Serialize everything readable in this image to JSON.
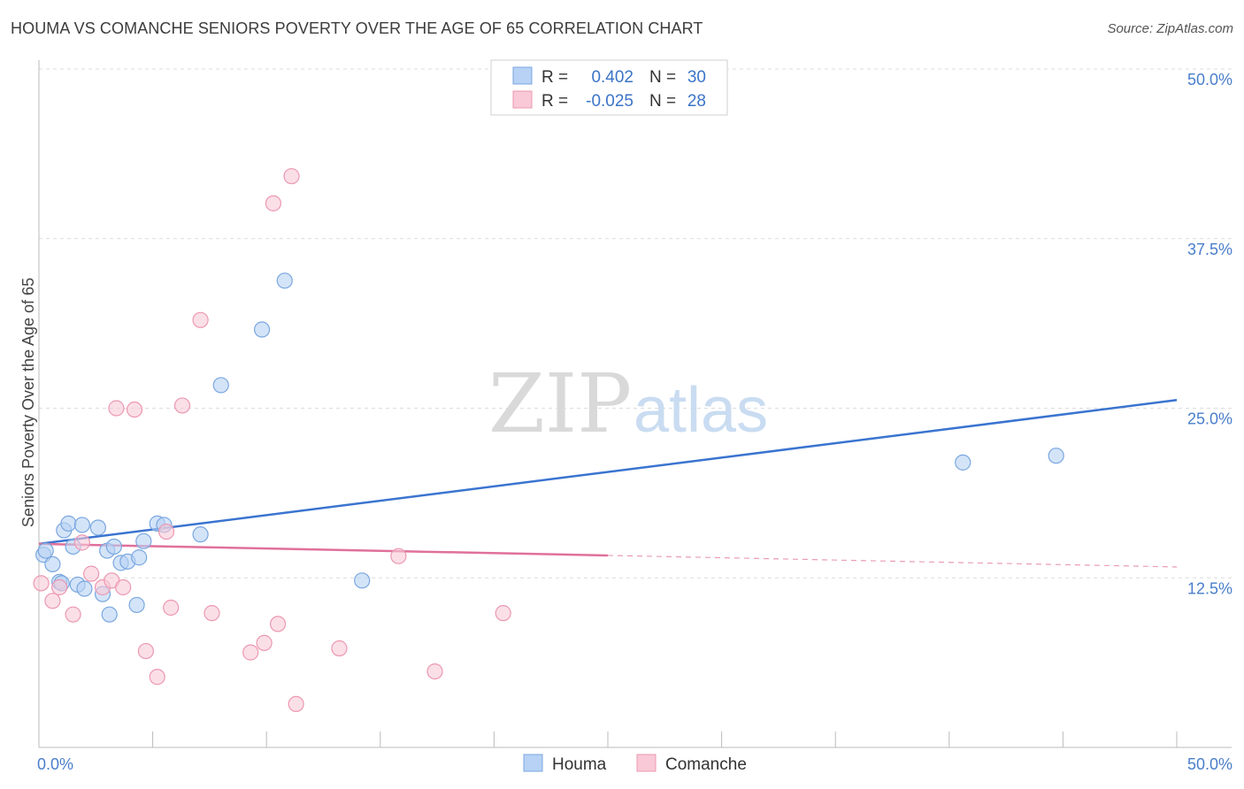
{
  "header": {
    "title": "HOUMA VS COMANCHE SENIORS POVERTY OVER THE AGE OF 65 CORRELATION CHART",
    "source": "Source: ZipAtlas.com"
  },
  "watermark": {
    "zip": "ZIP",
    "atlas": "atlas"
  },
  "legend_top": [
    {
      "r_label": "R =",
      "r_value": "0.402",
      "n_label": "N =",
      "n_value": "30",
      "fill": "#b7d2f4",
      "stroke": "#7aa7e0"
    },
    {
      "r_label": "R =",
      "r_value": "-0.025",
      "n_label": "N =",
      "n_value": "28",
      "fill": "#f9c9d7",
      "stroke": "#ec98b2"
    }
  ],
  "legend_bottom": [
    {
      "label": "Houma",
      "fill": "#b7d2f4",
      "stroke": "#7aa7e0"
    },
    {
      "label": "Comanche",
      "fill": "#f9c9d7",
      "stroke": "#ec98b2"
    }
  ],
  "chart_data": {
    "type": "scatter",
    "ylabel": "Seniors Poverty Over the Age of 65",
    "xlim": [
      0,
      50
    ],
    "ylim": [
      0,
      50
    ],
    "x_tick_labels": [
      {
        "value": 0,
        "label": "0.0%"
      },
      {
        "value": 50,
        "label": "50.0%"
      }
    ],
    "y_tick_labels": [
      {
        "value": 12.5,
        "label": "12.5%"
      },
      {
        "value": 25,
        "label": "25.0%"
      },
      {
        "value": 37.5,
        "label": "37.5%"
      },
      {
        "value": 50,
        "label": "50.0%"
      }
    ],
    "grid": true,
    "series": [
      {
        "name": "Houma",
        "color": "#3a74d0",
        "fill": "#b7d2f4",
        "stroke": "#7aa7e0",
        "trend": {
          "x": [
            0,
            50
          ],
          "y": [
            15.0,
            25.6
          ],
          "dashed_from": null
        },
        "points": [
          [
            0.2,
            14.2
          ],
          [
            0.3,
            14.5
          ],
          [
            0.6,
            13.5
          ],
          [
            0.9,
            12.2
          ],
          [
            1.0,
            12.1
          ],
          [
            1.1,
            16.0
          ],
          [
            1.3,
            16.5
          ],
          [
            1.5,
            14.8
          ],
          [
            1.7,
            12.0
          ],
          [
            1.9,
            16.4
          ],
          [
            2.0,
            11.7
          ],
          [
            2.6,
            16.2
          ],
          [
            2.8,
            11.3
          ],
          [
            3.0,
            14.5
          ],
          [
            3.1,
            9.8
          ],
          [
            3.3,
            14.8
          ],
          [
            3.6,
            13.6
          ],
          [
            3.9,
            13.7
          ],
          [
            4.3,
            10.5
          ],
          [
            4.4,
            14.0
          ],
          [
            4.6,
            15.2
          ],
          [
            5.2,
            16.5
          ],
          [
            5.5,
            16.4
          ],
          [
            7.1,
            15.7
          ],
          [
            8.0,
            26.7
          ],
          [
            9.8,
            30.8
          ],
          [
            10.8,
            34.4
          ],
          [
            14.2,
            12.3
          ],
          [
            40.6,
            21.0
          ],
          [
            44.7,
            21.5
          ]
        ]
      },
      {
        "name": "Comanche",
        "color": "#e0709b",
        "fill": "#f9c9d7",
        "stroke": "#ec98b2",
        "trend": {
          "x": [
            0,
            50
          ],
          "y": [
            15.0,
            13.3
          ],
          "dashed_from": 25
        },
        "points": [
          [
            0.1,
            12.1
          ],
          [
            0.6,
            10.8
          ],
          [
            0.9,
            11.8
          ],
          [
            1.5,
            9.8
          ],
          [
            1.9,
            15.1
          ],
          [
            2.3,
            12.8
          ],
          [
            2.8,
            11.8
          ],
          [
            3.2,
            12.3
          ],
          [
            3.4,
            25.0
          ],
          [
            3.7,
            11.8
          ],
          [
            4.2,
            24.9
          ],
          [
            4.7,
            7.1
          ],
          [
            5.2,
            5.2
          ],
          [
            5.6,
            15.9
          ],
          [
            5.8,
            10.3
          ],
          [
            6.3,
            25.2
          ],
          [
            7.1,
            31.5
          ],
          [
            7.6,
            9.9
          ],
          [
            9.3,
            7.0
          ],
          [
            9.9,
            7.7
          ],
          [
            10.3,
            40.1
          ],
          [
            10.5,
            9.1
          ],
          [
            11.1,
            42.1
          ],
          [
            11.3,
            3.2
          ],
          [
            13.2,
            7.3
          ],
          [
            15.8,
            14.1
          ],
          [
            17.4,
            5.6
          ],
          [
            20.4,
            9.9
          ]
        ]
      }
    ]
  }
}
